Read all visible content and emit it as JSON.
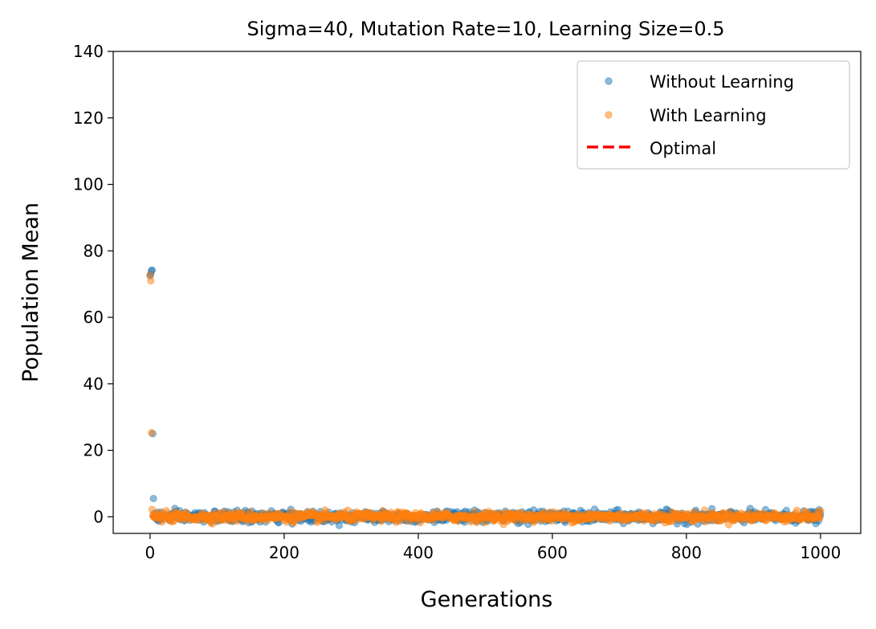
{
  "chart_data": {
    "type": "scatter",
    "title": "Sigma=40, Mutation Rate=10, Learning Size=0.5",
    "xlabel": "Generations",
    "ylabel": "Population Mean",
    "xlim": [
      -55,
      1060
    ],
    "ylim": [
      -5,
      140
    ],
    "xticks": [
      0,
      200,
      400,
      600,
      800,
      1000
    ],
    "yticks": [
      0,
      20,
      40,
      60,
      80,
      100,
      120,
      140
    ],
    "grid": false,
    "legend_position": "top-right",
    "x_range": [
      0,
      1000
    ],
    "series": [
      {
        "name": "Without Learning",
        "color": "#1f77b4",
        "marker": "circle",
        "early_points": [
          [
            0,
            72.5
          ],
          [
            1,
            73.0
          ],
          [
            2,
            74.0
          ],
          [
            3,
            74.2
          ],
          [
            4,
            25.0
          ],
          [
            5,
            5.5
          ],
          [
            6,
            1.0
          ],
          [
            7,
            0.3
          ]
        ],
        "steady_mean": 0,
        "steady_spread": 1.2
      },
      {
        "name": "With Learning",
        "color": "#ff7f0e",
        "marker": "circle",
        "early_points": [
          [
            0,
            72.8
          ],
          [
            1,
            71.0
          ],
          [
            2,
            25.3
          ],
          [
            3,
            2.2
          ],
          [
            4,
            0.5
          ]
        ],
        "steady_mean": 0,
        "steady_spread": 1.0
      },
      {
        "name": "Optimal",
        "color": "#ff0000",
        "style": "dashed-line",
        "x": [
          0,
          1000
        ],
        "values": [
          0,
          0
        ]
      }
    ]
  }
}
